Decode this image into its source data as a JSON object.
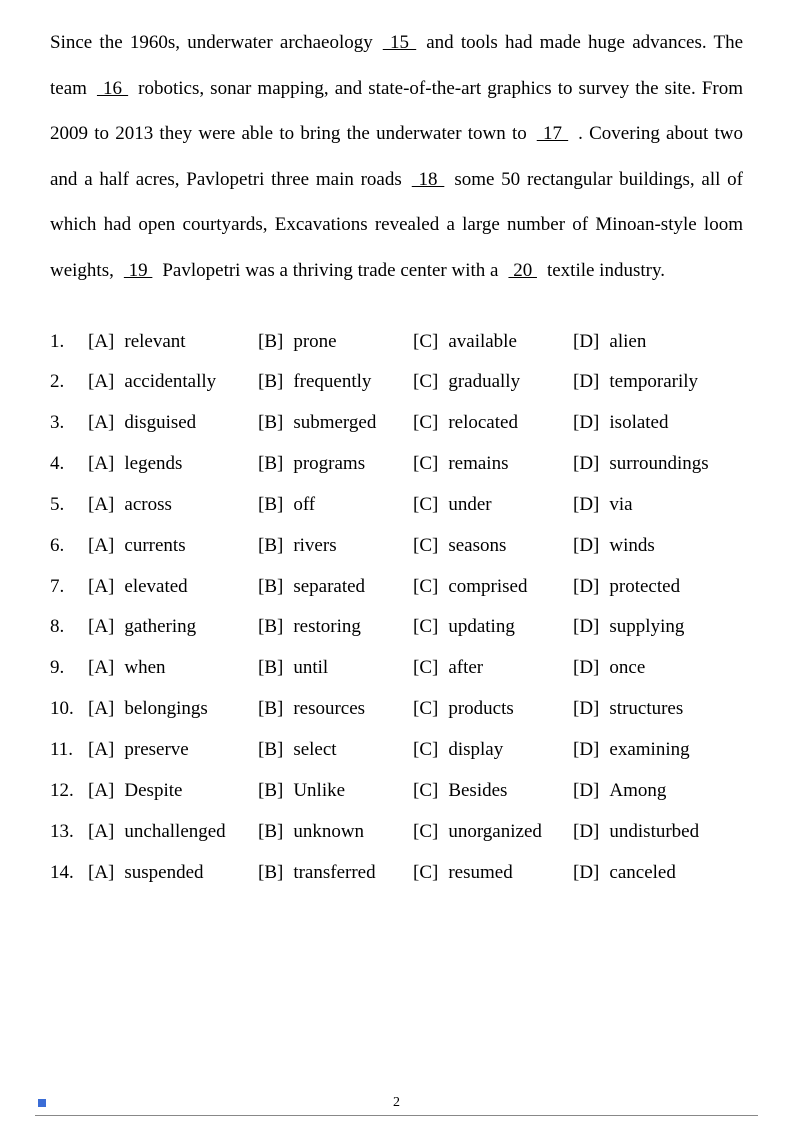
{
  "passage": {
    "part1": "Since the 1960s, underwater archaeology",
    "b15": "   15   ",
    "part2": "and tools had made huge advances. The team",
    "b16": "   16   ",
    "part3": "robotics, sonar mapping, and state-of-the-art graphics to survey the site. From 2009 to 2013 they were able to bring the underwater town to",
    "b17": "    17    ",
    "part4": ". Covering about two and a half acres, Pavlopetri three main roads",
    "b18": "   18   ",
    "part5": "some 50 rectangular buildings, all of which had open courtyards, Excavations revealed a large number of Minoan-style loom weights,",
    "b19": "   19   ",
    "part6": "Pavlopetri was a thriving trade center with a",
    "b20": "   20   ",
    "part7": "textile industry."
  },
  "options": [
    {
      "n": "1.",
      "a": "relevant",
      "b": "prone",
      "c": "available",
      "d": "alien"
    },
    {
      "n": "2.",
      "a": "accidentally",
      "b": "frequently",
      "c": "gradually",
      "d": "temporarily"
    },
    {
      "n": "3.",
      "a": "disguised",
      "b": "submerged",
      "c": "relocated",
      "d": "isolated"
    },
    {
      "n": "4.",
      "a": "legends",
      "b": "programs",
      "c": "remains",
      "d": "surroundings"
    },
    {
      "n": "5.",
      "a": "across",
      "b": "off",
      "c": "under",
      "d": "via"
    },
    {
      "n": "6.",
      "a": "currents",
      "b": "rivers",
      "c": "seasons",
      "d": "winds"
    },
    {
      "n": "7.",
      "a": "elevated",
      "b": "separated",
      "c": "comprised",
      "d": "protected"
    },
    {
      "n": "8.",
      "a": "gathering",
      "b": "restoring",
      "c": "updating",
      "d": "supplying"
    },
    {
      "n": "9.",
      "a": "when",
      "b": "until",
      "c": "after",
      "d": "once"
    },
    {
      "n": "10.",
      "a": "belongings",
      "b": "resources",
      "c": "products",
      "d": "structures"
    },
    {
      "n": "11.",
      "a": "preserve",
      "b": "select",
      "c": "display",
      "d": "examining"
    },
    {
      "n": "12.",
      "a": "Despite",
      "b": "Unlike",
      "c": "Besides",
      "d": "Among"
    },
    {
      "n": "13.",
      "a": "unchallenged",
      "b": "unknown",
      "c": "unorganized",
      "d": "undisturbed"
    },
    {
      "n": "14.",
      "a": "suspended",
      "b": "transferred",
      "c": "resumed",
      "d": "canceled"
    }
  ],
  "letters": {
    "a": "[A]",
    "b": "[B]",
    "c": "[C]",
    "d": "[D]"
  },
  "pageNumber": "2"
}
